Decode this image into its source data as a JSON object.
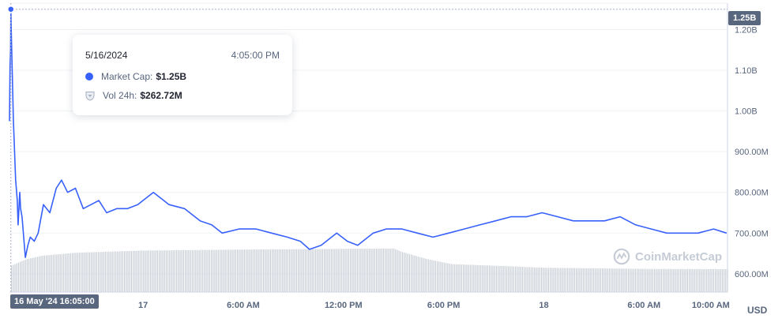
{
  "chart_data": {
    "type": "line",
    "title": "",
    "currency": "USD",
    "y_axis": {
      "position": "right",
      "ticks": [
        600000000,
        700000000,
        800000000,
        900000000,
        1000000000,
        1100000000,
        1200000000
      ],
      "tick_labels": [
        "600.00M",
        "700.00M",
        "800.00M",
        "900.00M",
        "1.00B",
        "1.10B",
        "1.20B"
      ],
      "range": [
        555000000,
        1265000000
      ]
    },
    "x_axis": {
      "start": "2024-05-16 16:00",
      "end": "2024-05-18 11:00",
      "ticks": [
        "2024-05-17 00:00",
        "2024-05-17 06:00",
        "2024-05-17 12:00",
        "2024-05-17 18:00",
        "2024-05-18 00:00",
        "2024-05-18 06:00",
        "2024-05-18 10:00"
      ],
      "tick_labels": [
        "17",
        "6:00 AM",
        "12:00 PM",
        "6:00 PM",
        "18",
        "6:00 AM",
        "10:00 AM"
      ]
    },
    "series": [
      {
        "name": "Market Cap",
        "color": "#3861fb",
        "x": [
          "2024-05-16 16:00",
          "2024-05-16 16:02",
          "2024-05-16 16:04",
          "2024-05-16 16:05",
          "2024-05-16 16:06",
          "2024-05-16 16:09",
          "2024-05-16 16:14",
          "2024-05-16 16:22",
          "2024-05-16 16:28",
          "2024-05-16 16:31",
          "2024-05-16 16:34",
          "2024-05-16 16:37",
          "2024-05-16 16:40",
          "2024-05-16 16:45",
          "2024-05-16 16:51",
          "2024-05-16 16:57",
          "2024-05-16 17:06",
          "2024-05-16 17:15",
          "2024-05-16 17:29",
          "2024-05-16 17:43",
          "2024-05-16 18:02",
          "2024-05-16 18:25",
          "2024-05-16 18:48",
          "2024-05-16 19:07",
          "2024-05-16 19:29",
          "2024-05-16 19:57",
          "2024-05-16 20:25",
          "2024-05-16 20:53",
          "2024-05-16 21:21",
          "2024-05-16 21:49",
          "2024-05-16 22:26",
          "2024-05-16 23:04",
          "2024-05-16 23:41",
          "2024-05-17 00:37",
          "2024-05-17 01:33",
          "2024-05-17 02:29",
          "2024-05-17 03:25",
          "2024-05-17 04:07",
          "2024-05-17 04:44",
          "2024-05-17 05:45",
          "2024-05-17 06:46",
          "2024-05-17 07:42",
          "2024-05-17 08:38",
          "2024-05-17 09:25",
          "2024-05-17 09:58",
          "2024-05-17 10:40",
          "2024-05-17 11:36",
          "2024-05-17 12:14",
          "2024-05-17 12:51",
          "2024-05-17 13:47",
          "2024-05-17 14:34",
          "2024-05-17 15:30",
          "2024-05-17 16:26",
          "2024-05-17 17:22",
          "2024-05-17 18:18",
          "2024-05-17 19:14",
          "2024-05-17 20:10",
          "2024-05-17 21:06",
          "2024-05-17 22:02",
          "2024-05-17 22:58",
          "2024-05-17 23:54",
          "2024-05-18 00:50",
          "2024-05-18 01:46",
          "2024-05-18 02:42",
          "2024-05-18 03:38",
          "2024-05-18 04:34",
          "2024-05-18 05:30",
          "2024-05-18 06:26",
          "2024-05-18 07:22",
          "2024-05-18 08:18",
          "2024-05-18 09:14",
          "2024-05-18 10:10",
          "2024-05-18 10:57"
        ],
        "values": [
          975000000,
          1110000000,
          1150000000,
          1250000000,
          1210000000,
          1120000000,
          980000000,
          830000000,
          780000000,
          720000000,
          760000000,
          800000000,
          760000000,
          740000000,
          690000000,
          640000000,
          670000000,
          690000000,
          680000000,
          700000000,
          770000000,
          750000000,
          810000000,
          830000000,
          800000000,
          810000000,
          760000000,
          770000000,
          780000000,
          750000000,
          760000000,
          760000000,
          770000000,
          800000000,
          770000000,
          760000000,
          730000000,
          720000000,
          700000000,
          710000000,
          710000000,
          700000000,
          690000000,
          680000000,
          660000000,
          670000000,
          700000000,
          680000000,
          670000000,
          700000000,
          710000000,
          710000000,
          700000000,
          690000000,
          700000000,
          710000000,
          720000000,
          730000000,
          740000000,
          740000000,
          750000000,
          740000000,
          730000000,
          730000000,
          730000000,
          740000000,
          720000000,
          710000000,
          700000000,
          700000000,
          700000000,
          710000000,
          700000000
        ]
      },
      {
        "name": "Vol 24h",
        "color": "#c8cdd6",
        "x": [
          "2024-05-16 16:00",
          "2024-05-16 17:00",
          "2024-05-16 18:00",
          "2024-05-16 20:00",
          "2024-05-17 00:00",
          "2024-05-17 06:00",
          "2024-05-17 12:00",
          "2024-05-17 15:00",
          "2024-05-17 15:30",
          "2024-05-17 17:00",
          "2024-05-17 18:30",
          "2024-05-17 22:00",
          "2024-05-18 00:00",
          "2024-05-18 06:00",
          "2024-05-18 11:00"
        ],
        "values": [
          180000000,
          230000000,
          255000000,
          275000000,
          290000000,
          297000000,
          302000000,
          304000000,
          280000000,
          230000000,
          195000000,
          180000000,
          170000000,
          162000000,
          160000000
        ]
      }
    ],
    "grid": true,
    "legend": "none"
  },
  "tooltip": {
    "date": "5/16/2024",
    "time": "4:05:00 PM",
    "market_cap_label": "Market Cap:",
    "market_cap_value": "$1.25B",
    "vol_label": "Vol 24h:",
    "vol_value": "$262.72M",
    "market_cap_icon": "dot-icon",
    "vol_icon": "shield-icon"
  },
  "crosshair": {
    "x_label": "16 May '24   16:05:00",
    "y_label": "1.25B"
  },
  "watermark": "CoinMarketCap",
  "currency_label": "USD"
}
